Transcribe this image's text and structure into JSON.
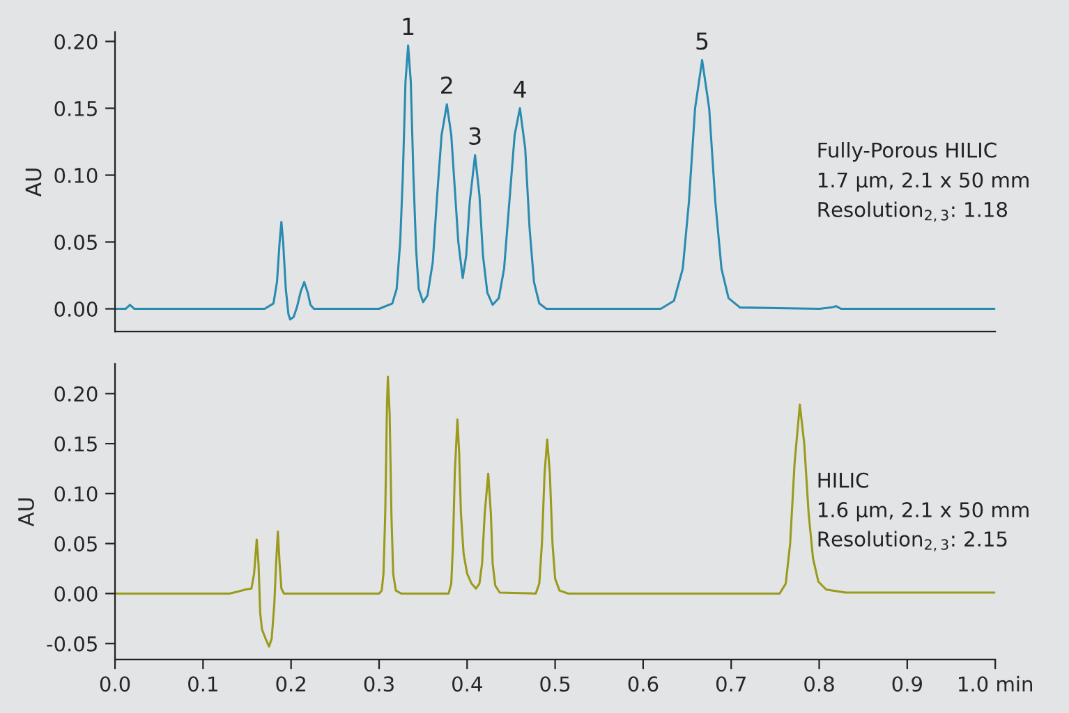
{
  "chart_data": [
    {
      "type": "line",
      "ylabel": "AU",
      "xlim": [
        0,
        1.0
      ],
      "ylim": [
        -0.017,
        0.207
      ],
      "yticks": [
        {
          "value": 0,
          "label": "0.00"
        },
        {
          "value": 0.05,
          "label": "0.05"
        },
        {
          "value": 0.1,
          "label": "0.10"
        },
        {
          "value": 0.15,
          "label": "0.15"
        },
        {
          "value": 0.2,
          "label": "0.20"
        }
      ],
      "tick_labels": "y",
      "grid": false,
      "legend": false,
      "series": [
        {
          "color": "#2a8bb0",
          "x": [
            0,
            0.012,
            0.017,
            0.022,
            0.17,
            0.18,
            0.184,
            0.187,
            0.189,
            0.191,
            0.194,
            0.197,
            0.199,
            0.203,
            0.207,
            0.211,
            0.215,
            0.219,
            0.222,
            0.226,
            0.3,
            0.315,
            0.32,
            0.324,
            0.327,
            0.33,
            0.333,
            0.336,
            0.339,
            0.342,
            0.345,
            0.35,
            0.355,
            0.361,
            0.366,
            0.371,
            0.377,
            0.382,
            0.386,
            0.39,
            0.395,
            0.399,
            0.403,
            0.409,
            0.414,
            0.418,
            0.423,
            0.429,
            0.436,
            0.442,
            0.448,
            0.454,
            0.46,
            0.466,
            0.471,
            0.476,
            0.482,
            0.49,
            0.62,
            0.635,
            0.645,
            0.652,
            0.659,
            0.667,
            0.675,
            0.682,
            0.689,
            0.697,
            0.71,
            0.8,
            0.814,
            0.819,
            0.825,
            1.0
          ],
          "values": [
            0,
            0,
            0.003,
            0,
            0,
            0.004,
            0.02,
            0.05,
            0.065,
            0.05,
            0.015,
            -0.004,
            -0.008,
            -0.006,
            0.002,
            0.013,
            0.02,
            0.012,
            0.003,
            0,
            0,
            0.004,
            0.015,
            0.05,
            0.1,
            0.17,
            0.197,
            0.17,
            0.1,
            0.045,
            0.015,
            0.005,
            0.01,
            0.035,
            0.085,
            0.13,
            0.153,
            0.13,
            0.09,
            0.05,
            0.023,
            0.04,
            0.08,
            0.115,
            0.085,
            0.04,
            0.012,
            0.003,
            0.008,
            0.03,
            0.08,
            0.13,
            0.15,
            0.12,
            0.06,
            0.02,
            0.004,
            0,
            0,
            0.006,
            0.03,
            0.08,
            0.15,
            0.186,
            0.15,
            0.08,
            0.03,
            0.008,
            0.001,
            0,
            0.001,
            0.002,
            0,
            0
          ]
        }
      ],
      "annotations": [
        {
          "text": "1",
          "x": 0.333,
          "y": 0.197
        },
        {
          "text": "2",
          "x": 0.377,
          "y": 0.153
        },
        {
          "text": "3",
          "x": 0.409,
          "y": 0.115
        },
        {
          "text": "4",
          "x": 0.46,
          "y": 0.15
        },
        {
          "text": "5",
          "x": 0.667,
          "y": 0.186
        },
        "Fully-Porous HILIC",
        "1.7 µm, 2.1 x 50 mm",
        "Resolution$_{2,3}$: 1.18"
      ]
    },
    {
      "type": "line",
      "ylabel": "AU",
      "xlim": [
        0,
        1.0
      ],
      "ylim": [
        -0.066,
        0.23
      ],
      "xticks": [
        {
          "value": 0,
          "label": "0.0"
        },
        0.1,
        0.2,
        0.3,
        0.4,
        0.5,
        0.6,
        0.7,
        0.8,
        0.9,
        {
          "value": 1.0,
          "label": "1.0 min"
        }
      ],
      "yticks": [
        {
          "value": -0.05,
          "label": "-0.05"
        },
        {
          "value": 0,
          "label": "0.00"
        },
        {
          "value": 0.05,
          "label": "0.05"
        },
        {
          "value": 0.1,
          "label": "0.10"
        },
        {
          "value": 0.15,
          "label": "0.15"
        },
        {
          "value": 0.2,
          "label": "0.20"
        }
      ],
      "grid": false,
      "legend": false,
      "series": [
        {
          "color": "#9a9a1c",
          "x": [
            0,
            0.13,
            0.14,
            0.148,
            0.155,
            0.158,
            0.161,
            0.163,
            0.165,
            0.167,
            0.171,
            0.175,
            0.178,
            0.181,
            0.183,
            0.185,
            0.187,
            0.189,
            0.192,
            0.3,
            0.303,
            0.305,
            0.307,
            0.309,
            0.31,
            0.312,
            0.314,
            0.316,
            0.319,
            0.325,
            0.379,
            0.382,
            0.384,
            0.386,
            0.389,
            0.391,
            0.393,
            0.396,
            0.4,
            0.405,
            0.41,
            0.414,
            0.417,
            0.42,
            0.424,
            0.427,
            0.429,
            0.432,
            0.437,
            0.478,
            0.482,
            0.485,
            0.488,
            0.491,
            0.494,
            0.497,
            0.5,
            0.505,
            0.515,
            0.755,
            0.762,
            0.767,
            0.772,
            0.778,
            0.783,
            0.788,
            0.793,
            0.799,
            0.808,
            0.83,
            1.0
          ],
          "values": [
            0,
            0,
            0.002,
            0.004,
            0.005,
            0.02,
            0.054,
            0.03,
            -0.02,
            -0.036,
            -0.045,
            -0.053,
            -0.045,
            -0.01,
            0.03,
            0.062,
            0.03,
            0.005,
            0,
            0,
            0.003,
            0.02,
            0.08,
            0.19,
            0.217,
            0.18,
            0.08,
            0.02,
            0.003,
            0,
            0,
            0.01,
            0.05,
            0.12,
            0.174,
            0.14,
            0.08,
            0.04,
            0.02,
            0.01,
            0.005,
            0.01,
            0.03,
            0.08,
            0.12,
            0.08,
            0.03,
            0.008,
            0.001,
            0,
            0.01,
            0.05,
            0.12,
            0.154,
            0.12,
            0.05,
            0.015,
            0.003,
            0,
            0,
            0.01,
            0.05,
            0.13,
            0.189,
            0.15,
            0.08,
            0.035,
            0.012,
            0.004,
            0.001,
            0.001
          ]
        }
      ],
      "annotations": [
        "HILIC",
        "1.6 µm, 2.1 x 50 mm",
        "Resolution$_{2,3}$: 2.15"
      ]
    }
  ]
}
